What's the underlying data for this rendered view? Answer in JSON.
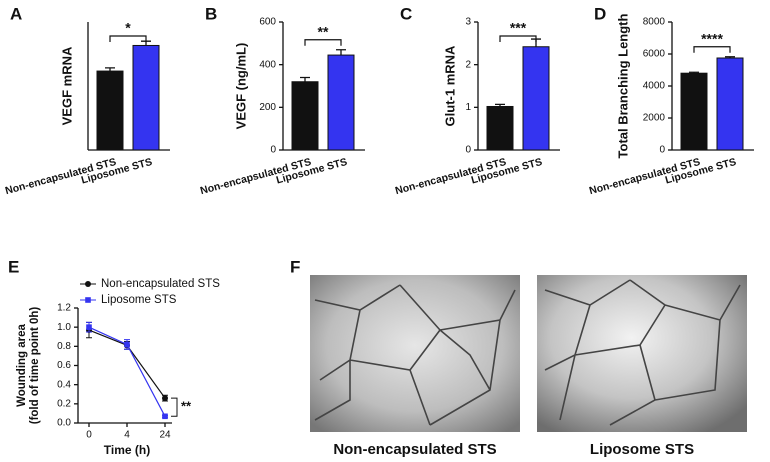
{
  "chart_data": [
    {
      "type": "bar",
      "panel_label": "A",
      "ylabel": "VEGF mRNA",
      "categories": [
        "Non-encapsulated STS",
        "Liposome STS"
      ],
      "values": [
        3.7,
        4.9
      ],
      "errors": [
        0.15,
        0.2
      ],
      "colors": [
        "#111111",
        "#3434f0"
      ],
      "ylim": [
        0,
        6
      ],
      "annotation": "*"
    },
    {
      "type": "bar",
      "panel_label": "B",
      "ylabel": "VEGF (ng/mL)",
      "categories": [
        "Non-encapsulated STS",
        "Liposome STS"
      ],
      "values": [
        320,
        445
      ],
      "errors": [
        20,
        25
      ],
      "colors": [
        "#111111",
        "#3434f0"
      ],
      "ylim": [
        0,
        600
      ],
      "yticks": [
        0,
        200,
        400,
        600
      ],
      "annotation": "**"
    },
    {
      "type": "bar",
      "panel_label": "C",
      "ylabel": "Glut-1 mRNA",
      "categories": [
        "Non-encapsulated STS",
        "Liposome STS"
      ],
      "values": [
        1.02,
        2.42
      ],
      "errors": [
        0.05,
        0.18
      ],
      "colors": [
        "#111111",
        "#3434f0"
      ],
      "ylim": [
        0,
        3
      ],
      "yticks": [
        0,
        1,
        2,
        3
      ],
      "annotation": "***"
    },
    {
      "type": "bar",
      "panel_label": "D",
      "ylabel": "Total Branching Length",
      "categories": [
        "Non-encapsulated STS",
        "Liposome STS"
      ],
      "values": [
        4800,
        5750
      ],
      "errors": [
        60,
        80
      ],
      "colors": [
        "#111111",
        "#3434f0"
      ],
      "ylim": [
        0,
        8000
      ],
      "yticks": [
        0,
        2000,
        4000,
        6000,
        8000
      ],
      "annotation": "****"
    },
    {
      "type": "line",
      "panel_label": "E",
      "xlabel": "Time (h)",
      "ylabel": [
        "Wounding area",
        "(fold of time point 0h)"
      ],
      "categories": [
        "0",
        "4",
        "24"
      ],
      "series": [
        {
          "name": "Non-encapsulated STS",
          "color": "#111111",
          "values": [
            0.97,
            0.81,
            0.26
          ],
          "errors": [
            0.08,
            0.04,
            0.03
          ]
        },
        {
          "name": "Liposome STS",
          "color": "#3434f0",
          "values": [
            1.0,
            0.82,
            0.07
          ],
          "errors": [
            0.05,
            0.05,
            0.01
          ]
        }
      ],
      "ylim": [
        0,
        1.2
      ],
      "yticks": [
        {
          "value": 0,
          "label": "0.0"
        },
        {
          "value": 0.2,
          "label": "0.2"
        },
        {
          "value": 0.4,
          "label": "0.4"
        },
        {
          "value": 0.6,
          "label": "0.6"
        },
        {
          "value": 0.8,
          "label": "0.8"
        },
        {
          "value": 1.0,
          "label": "1.0"
        },
        {
          "value": 1.2,
          "label": "1.2"
        }
      ],
      "annotation": "**"
    }
  ],
  "figure_f": {
    "panel_label": "F",
    "captions": [
      "Non-encapsulated STS",
      "Liposome STS"
    ]
  }
}
